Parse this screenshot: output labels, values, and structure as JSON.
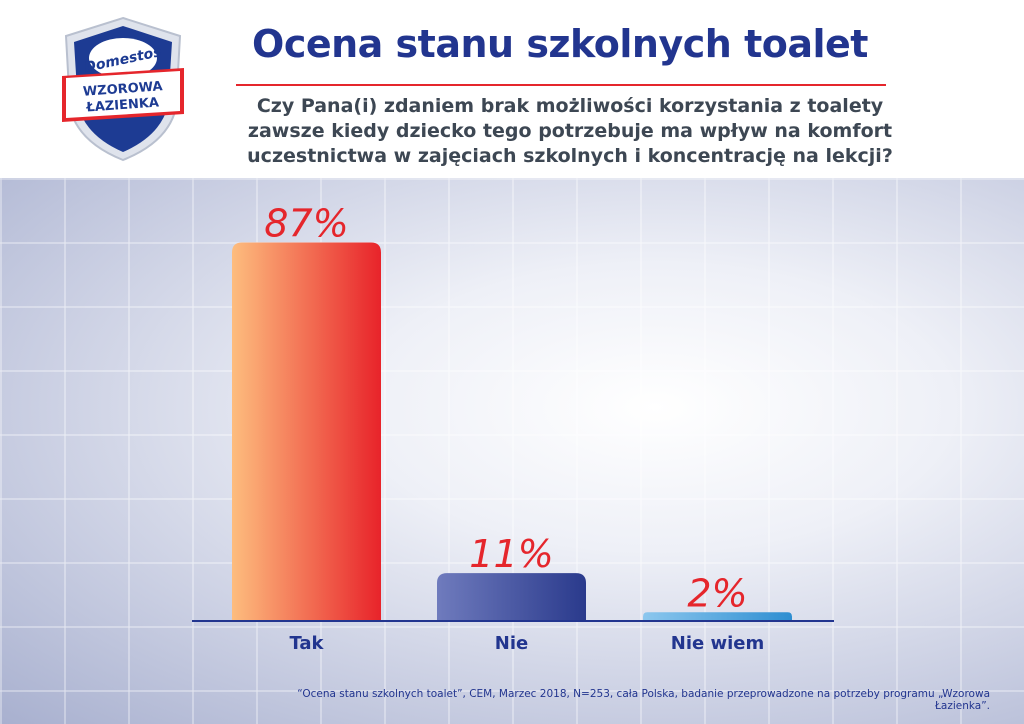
{
  "logo": {
    "brand": "Domestos",
    "line1": "WZOROWA",
    "line2": "ŁAZIENKA"
  },
  "header": {
    "title": "Ocena stanu szkolnych toalet",
    "subtitle_lines": [
      "Czy Pana(i) zdaniem brak możliwości korzystania z toalety",
      "zawsze kiedy dziecko tego potrzebuje ma wpływ na komfort",
      "uczestnictwa w zajęciach szkolnych i koncentrację na lekcji?"
    ]
  },
  "colors": {
    "title": "#22358f",
    "rule": "#e5262c",
    "label": "#e5262c",
    "tak_gradient": [
      "#fdbd7e",
      "#e8232a"
    ],
    "nie_gradient": [
      "#6f7bbd",
      "#2a3a8c"
    ],
    "nie_wiem_gradient": [
      "#8cc7ee",
      "#2e8ed1"
    ]
  },
  "chart_data": {
    "type": "bar",
    "categories": [
      "Tak",
      "Nie",
      "Nie wiem"
    ],
    "values": [
      87,
      11,
      2
    ],
    "value_labels": [
      "87%",
      "11%",
      "2%"
    ],
    "unit": "%",
    "ylim": [
      0,
      100
    ],
    "grid": false,
    "legend": "none"
  },
  "footnote": "“Ocena stanu szkolnych toalet”, CEM, Marzec 2018, N=253, cała Polska, badanie przeprowadzone na potrzeby programu „Wzorowa Łazienka”."
}
